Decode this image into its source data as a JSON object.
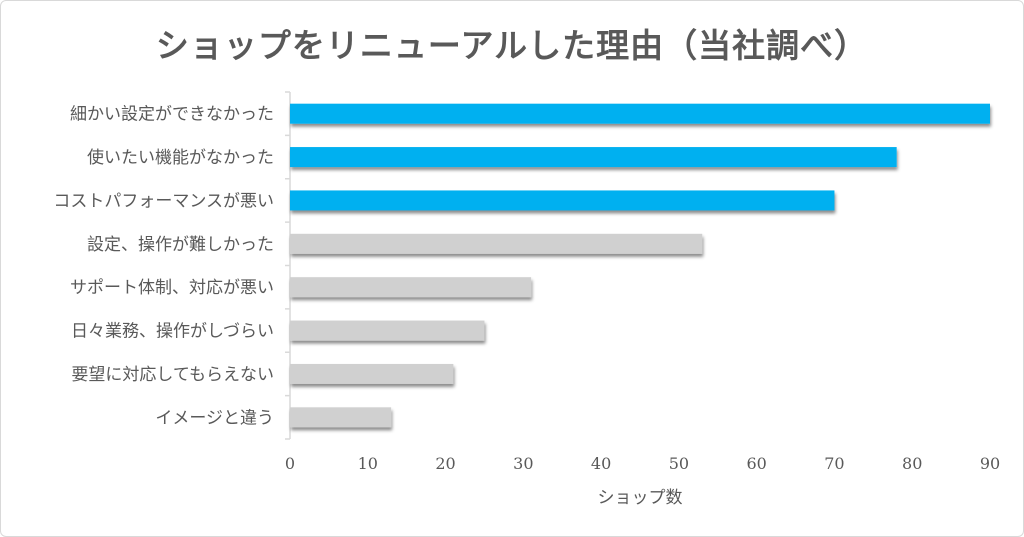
{
  "chart_data": {
    "type": "bar",
    "orientation": "horizontal",
    "title": "ショップをリニューアルした理由（当社調べ）",
    "xlabel": "ショップ数",
    "ylabel": "",
    "categories": [
      "細かい設定ができなかった",
      "使いたい機能がなかった",
      "コストパフォーマンスが悪い",
      "設定、操作が難しかった",
      "サポート体制、対応が悪い",
      "日々業務、操作がしづらい",
      "要望に対応してもらえない",
      "イメージと違う"
    ],
    "values": [
      90,
      78,
      70,
      53,
      31,
      25,
      21,
      13
    ],
    "xlim": [
      0,
      90
    ],
    "xticks": [
      0,
      10,
      20,
      30,
      40,
      50,
      60,
      70,
      80,
      90
    ],
    "grid": false,
    "legend": "none",
    "colors": {
      "highlight": "#00b0f0",
      "default": "#d0d0d0"
    },
    "highlighted_count": 3
  }
}
